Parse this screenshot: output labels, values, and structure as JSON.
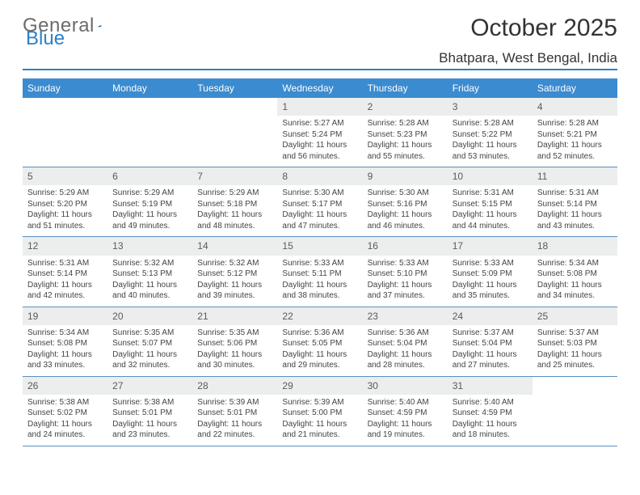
{
  "logo": {
    "text_a": "General",
    "text_b": "Blue"
  },
  "title": "October 2025",
  "location": "Bhatpara, West Bengal, India",
  "colors": {
    "header_bg": "#3b8bd0",
    "header_text": "#ffffff",
    "rule": "#5a8fc0",
    "daynum_bg": "#eceded",
    "text": "#444444",
    "logo_gray": "#6b6b6b",
    "logo_blue": "#2f7fc2"
  },
  "weekdays": [
    "Sunday",
    "Monday",
    "Tuesday",
    "Wednesday",
    "Thursday",
    "Friday",
    "Saturday"
  ],
  "weeks": [
    [
      {
        "n": "",
        "blank": true
      },
      {
        "n": "",
        "blank": true
      },
      {
        "n": "",
        "blank": true
      },
      {
        "n": "1",
        "sunrise": "5:27 AM",
        "sunset": "5:24 PM",
        "dl": "11 hours and 56 minutes."
      },
      {
        "n": "2",
        "sunrise": "5:28 AM",
        "sunset": "5:23 PM",
        "dl": "11 hours and 55 minutes."
      },
      {
        "n": "3",
        "sunrise": "5:28 AM",
        "sunset": "5:22 PM",
        "dl": "11 hours and 53 minutes."
      },
      {
        "n": "4",
        "sunrise": "5:28 AM",
        "sunset": "5:21 PM",
        "dl": "11 hours and 52 minutes."
      }
    ],
    [
      {
        "n": "5",
        "sunrise": "5:29 AM",
        "sunset": "5:20 PM",
        "dl": "11 hours and 51 minutes."
      },
      {
        "n": "6",
        "sunrise": "5:29 AM",
        "sunset": "5:19 PM",
        "dl": "11 hours and 49 minutes."
      },
      {
        "n": "7",
        "sunrise": "5:29 AM",
        "sunset": "5:18 PM",
        "dl": "11 hours and 48 minutes."
      },
      {
        "n": "8",
        "sunrise": "5:30 AM",
        "sunset": "5:17 PM",
        "dl": "11 hours and 47 minutes."
      },
      {
        "n": "9",
        "sunrise": "5:30 AM",
        "sunset": "5:16 PM",
        "dl": "11 hours and 46 minutes."
      },
      {
        "n": "10",
        "sunrise": "5:31 AM",
        "sunset": "5:15 PM",
        "dl": "11 hours and 44 minutes."
      },
      {
        "n": "11",
        "sunrise": "5:31 AM",
        "sunset": "5:14 PM",
        "dl": "11 hours and 43 minutes."
      }
    ],
    [
      {
        "n": "12",
        "sunrise": "5:31 AM",
        "sunset": "5:14 PM",
        "dl": "11 hours and 42 minutes."
      },
      {
        "n": "13",
        "sunrise": "5:32 AM",
        "sunset": "5:13 PM",
        "dl": "11 hours and 40 minutes."
      },
      {
        "n": "14",
        "sunrise": "5:32 AM",
        "sunset": "5:12 PM",
        "dl": "11 hours and 39 minutes."
      },
      {
        "n": "15",
        "sunrise": "5:33 AM",
        "sunset": "5:11 PM",
        "dl": "11 hours and 38 minutes."
      },
      {
        "n": "16",
        "sunrise": "5:33 AM",
        "sunset": "5:10 PM",
        "dl": "11 hours and 37 minutes."
      },
      {
        "n": "17",
        "sunrise": "5:33 AM",
        "sunset": "5:09 PM",
        "dl": "11 hours and 35 minutes."
      },
      {
        "n": "18",
        "sunrise": "5:34 AM",
        "sunset": "5:08 PM",
        "dl": "11 hours and 34 minutes."
      }
    ],
    [
      {
        "n": "19",
        "sunrise": "5:34 AM",
        "sunset": "5:08 PM",
        "dl": "11 hours and 33 minutes."
      },
      {
        "n": "20",
        "sunrise": "5:35 AM",
        "sunset": "5:07 PM",
        "dl": "11 hours and 32 minutes."
      },
      {
        "n": "21",
        "sunrise": "5:35 AM",
        "sunset": "5:06 PM",
        "dl": "11 hours and 30 minutes."
      },
      {
        "n": "22",
        "sunrise": "5:36 AM",
        "sunset": "5:05 PM",
        "dl": "11 hours and 29 minutes."
      },
      {
        "n": "23",
        "sunrise": "5:36 AM",
        "sunset": "5:04 PM",
        "dl": "11 hours and 28 minutes."
      },
      {
        "n": "24",
        "sunrise": "5:37 AM",
        "sunset": "5:04 PM",
        "dl": "11 hours and 27 minutes."
      },
      {
        "n": "25",
        "sunrise": "5:37 AM",
        "sunset": "5:03 PM",
        "dl": "11 hours and 25 minutes."
      }
    ],
    [
      {
        "n": "26",
        "sunrise": "5:38 AM",
        "sunset": "5:02 PM",
        "dl": "11 hours and 24 minutes."
      },
      {
        "n": "27",
        "sunrise": "5:38 AM",
        "sunset": "5:01 PM",
        "dl": "11 hours and 23 minutes."
      },
      {
        "n": "28",
        "sunrise": "5:39 AM",
        "sunset": "5:01 PM",
        "dl": "11 hours and 22 minutes."
      },
      {
        "n": "29",
        "sunrise": "5:39 AM",
        "sunset": "5:00 PM",
        "dl": "11 hours and 21 minutes."
      },
      {
        "n": "30",
        "sunrise": "5:40 AM",
        "sunset": "4:59 PM",
        "dl": "11 hours and 19 minutes."
      },
      {
        "n": "31",
        "sunrise": "5:40 AM",
        "sunset": "4:59 PM",
        "dl": "11 hours and 18 minutes."
      },
      {
        "n": "",
        "blank": true
      }
    ]
  ],
  "labels": {
    "sunrise": "Sunrise:",
    "sunset": "Sunset:",
    "daylight": "Daylight:"
  }
}
